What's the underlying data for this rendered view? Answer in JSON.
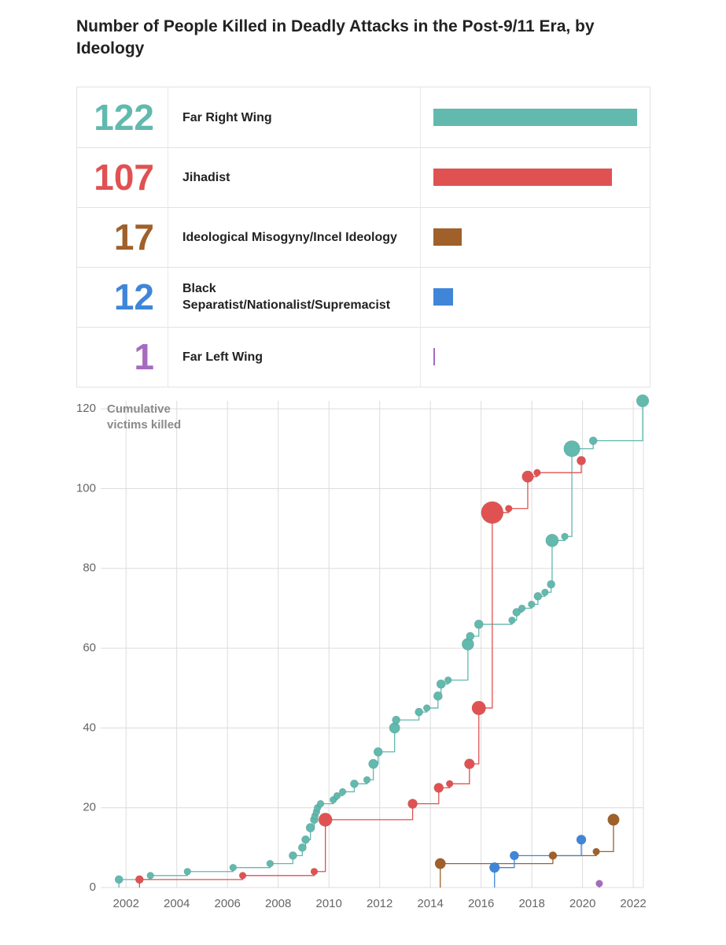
{
  "chart_data": [
    {
      "type": "bar",
      "title": "Number of People Killed in Deadly Attacks in the Post-9/11 Era, by Ideology",
      "categories": [
        "Far Right Wing",
        "Jihadist",
        "Ideological Misogyny/Incel Ideology",
        "Black Separatist/Nationalist/Supremacist",
        "Far Left Wing"
      ],
      "values": [
        122,
        107,
        17,
        12,
        1
      ],
      "colors": [
        "#62b9ae",
        "#e05252",
        "#a0602a",
        "#3f86d8",
        "#a66bbf"
      ]
    },
    {
      "type": "step",
      "y_label": "Cumulative victims killed",
      "xlim": [
        2001,
        2022.4
      ],
      "xticks": [
        2002,
        2004,
        2006,
        2008,
        2010,
        2012,
        2014,
        2016,
        2018,
        2020,
        2022
      ],
      "ylim": [
        0,
        122
      ],
      "yticks": [
        0,
        20,
        40,
        60,
        80,
        100,
        120
      ],
      "grid": true,
      "series": [
        {
          "color": "#62b9ae",
          "x": [
            2001.72,
            2002.96,
            2004.42,
            2006.22,
            2007.68,
            2008.58,
            2008.95,
            2009.08,
            2009.27,
            2009.42,
            2009.45,
            2009.51,
            2009.55,
            2009.67,
            2010.17,
            2010.32,
            2010.54,
            2011.0,
            2011.5,
            2011.75,
            2011.94,
            2012.59,
            2012.65,
            2013.55,
            2013.86,
            2014.3,
            2014.42,
            2014.7,
            2015.48,
            2015.57,
            2015.91,
            2017.22,
            2017.4,
            2017.61,
            2017.99,
            2018.24,
            2018.52,
            2018.76,
            2018.8,
            2019.3,
            2019.58,
            2020.42,
            2022.37
          ],
          "values": [
            2,
            3,
            4,
            5,
            6,
            8,
            10,
            12,
            15,
            17,
            18,
            19,
            20,
            21,
            22,
            23,
            24,
            26,
            27,
            31,
            34,
            40,
            42,
            44,
            45,
            48,
            51,
            52,
            61,
            63,
            66,
            67,
            69,
            70,
            71,
            73,
            74,
            76,
            87,
            88,
            110,
            112,
            122
          ]
        },
        {
          "color": "#e05252",
          "x": [
            2002.53,
            2006.6,
            2009.42,
            2009.86,
            2013.3,
            2014.33,
            2014.76,
            2015.54,
            2015.91,
            2016.44,
            2017.09,
            2017.84,
            2018.21,
            2019.95
          ],
          "values": [
            2,
            3,
            4,
            17,
            21,
            25,
            26,
            31,
            45,
            94,
            95,
            103,
            104,
            107
          ]
        },
        {
          "color": "#a0602a",
          "x": [
            2014.39,
            2018.83,
            2020.54,
            2021.22
          ],
          "values": [
            6,
            8,
            9,
            17
          ]
        },
        {
          "color": "#3f86d8",
          "x": [
            2016.53,
            2017.31,
            2019.95
          ],
          "values": [
            5,
            8,
            12
          ]
        },
        {
          "color": "#a66bbf",
          "x": [
            2020.66
          ],
          "values": [
            1
          ]
        }
      ]
    }
  ]
}
